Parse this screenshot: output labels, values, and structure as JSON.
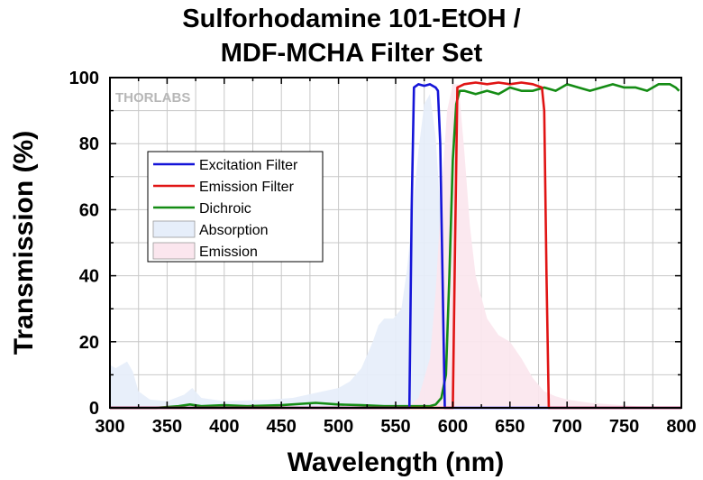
{
  "chart_data": {
    "type": "line",
    "title_lines": [
      "Sulforhodamine 101-EtOH /",
      "MDF-MCHA Filter Set"
    ],
    "xlabel": "Wavelength (nm)",
    "ylabel": "Transmission (%)",
    "xlim": [
      300,
      800
    ],
    "ylim": [
      0,
      100
    ],
    "xticks": [
      300,
      350,
      400,
      450,
      500,
      550,
      600,
      650,
      700,
      750,
      800
    ],
    "yticks": [
      0,
      20,
      40,
      60,
      80,
      100
    ],
    "grid": true,
    "legend_position": "upper-left",
    "watermark": "THORLABS",
    "series": [
      {
        "name": "Excitation Filter",
        "kind": "line",
        "color": "#1414d8",
        "x": [
          300,
          562,
          564,
          566,
          570,
          575,
          580,
          585,
          587,
          589,
          591,
          593,
          800
        ],
        "y": [
          0,
          0,
          60,
          97,
          98,
          97.5,
          98,
          97,
          96,
          80,
          40,
          0,
          0
        ]
      },
      {
        "name": "Emission Filter",
        "kind": "line",
        "color": "#e01414",
        "x": [
          300,
          600,
          602,
          604,
          610,
          620,
          630,
          640,
          650,
          660,
          670,
          678,
          680,
          682,
          684,
          800
        ],
        "y": [
          0,
          0,
          50,
          97,
          98,
          98.5,
          98,
          98.5,
          98,
          98.5,
          98,
          97,
          90,
          40,
          0,
          0
        ]
      },
      {
        "name": "Dichroic",
        "kind": "line",
        "color": "#148c14",
        "x": [
          300,
          340,
          360,
          370,
          380,
          400,
          420,
          450,
          480,
          500,
          520,
          540,
          560,
          570,
          580,
          585,
          590,
          594,
          597,
          600,
          603,
          606,
          610,
          620,
          630,
          640,
          650,
          660,
          670,
          680,
          690,
          700,
          710,
          720,
          730,
          740,
          750,
          760,
          770,
          780,
          790,
          795,
          798
        ],
        "y": [
          0,
          0,
          0.5,
          1,
          0.5,
          0.8,
          0.5,
          0.8,
          1.5,
          1,
          0.8,
          0.5,
          0.5,
          0.5,
          0.5,
          1,
          3,
          10,
          40,
          75,
          92,
          96,
          96,
          95,
          96,
          95,
          97,
          96,
          96,
          97,
          96,
          98,
          97,
          96,
          97,
          98,
          97,
          97,
          96,
          98,
          98,
          97,
          96
        ]
      },
      {
        "name": "Absorption",
        "kind": "area",
        "color": "#e6eefa",
        "x": [
          300,
          305,
          310,
          315,
          320,
          325,
          335,
          350,
          365,
          372,
          380,
          400,
          440,
          460,
          480,
          500,
          510,
          520,
          530,
          535,
          540,
          548,
          555,
          560,
          565,
          570,
          575,
          580,
          585,
          590,
          595,
          600,
          605,
          610,
          620
        ],
        "y": [
          13,
          12,
          13,
          14,
          11,
          5,
          2.5,
          2,
          4,
          6,
          3,
          2,
          2.5,
          3,
          4.5,
          6,
          8,
          12,
          20,
          25,
          27,
          27,
          30,
          42,
          60,
          78,
          92,
          95,
          82,
          55,
          25,
          8,
          3,
          1,
          0
        ]
      },
      {
        "name": "Emission",
        "kind": "area",
        "color": "#fbe6ee",
        "x": [
          560,
          570,
          580,
          585,
          590,
          595,
          600,
          605,
          610,
          615,
          620,
          630,
          640,
          650,
          660,
          670,
          680,
          690,
          700,
          720,
          740,
          760,
          780,
          800
        ],
        "y": [
          0,
          3,
          15,
          35,
          65,
          90,
          98,
          98,
          78,
          55,
          40,
          27,
          22,
          20,
          15,
          9,
          5,
          3.5,
          2.5,
          1.5,
          1,
          0.5,
          0.3,
          0.2
        ]
      }
    ],
    "legend_order": [
      "Excitation Filter",
      "Emission Filter",
      "Dichroic",
      "Absorption",
      "Emission"
    ]
  }
}
